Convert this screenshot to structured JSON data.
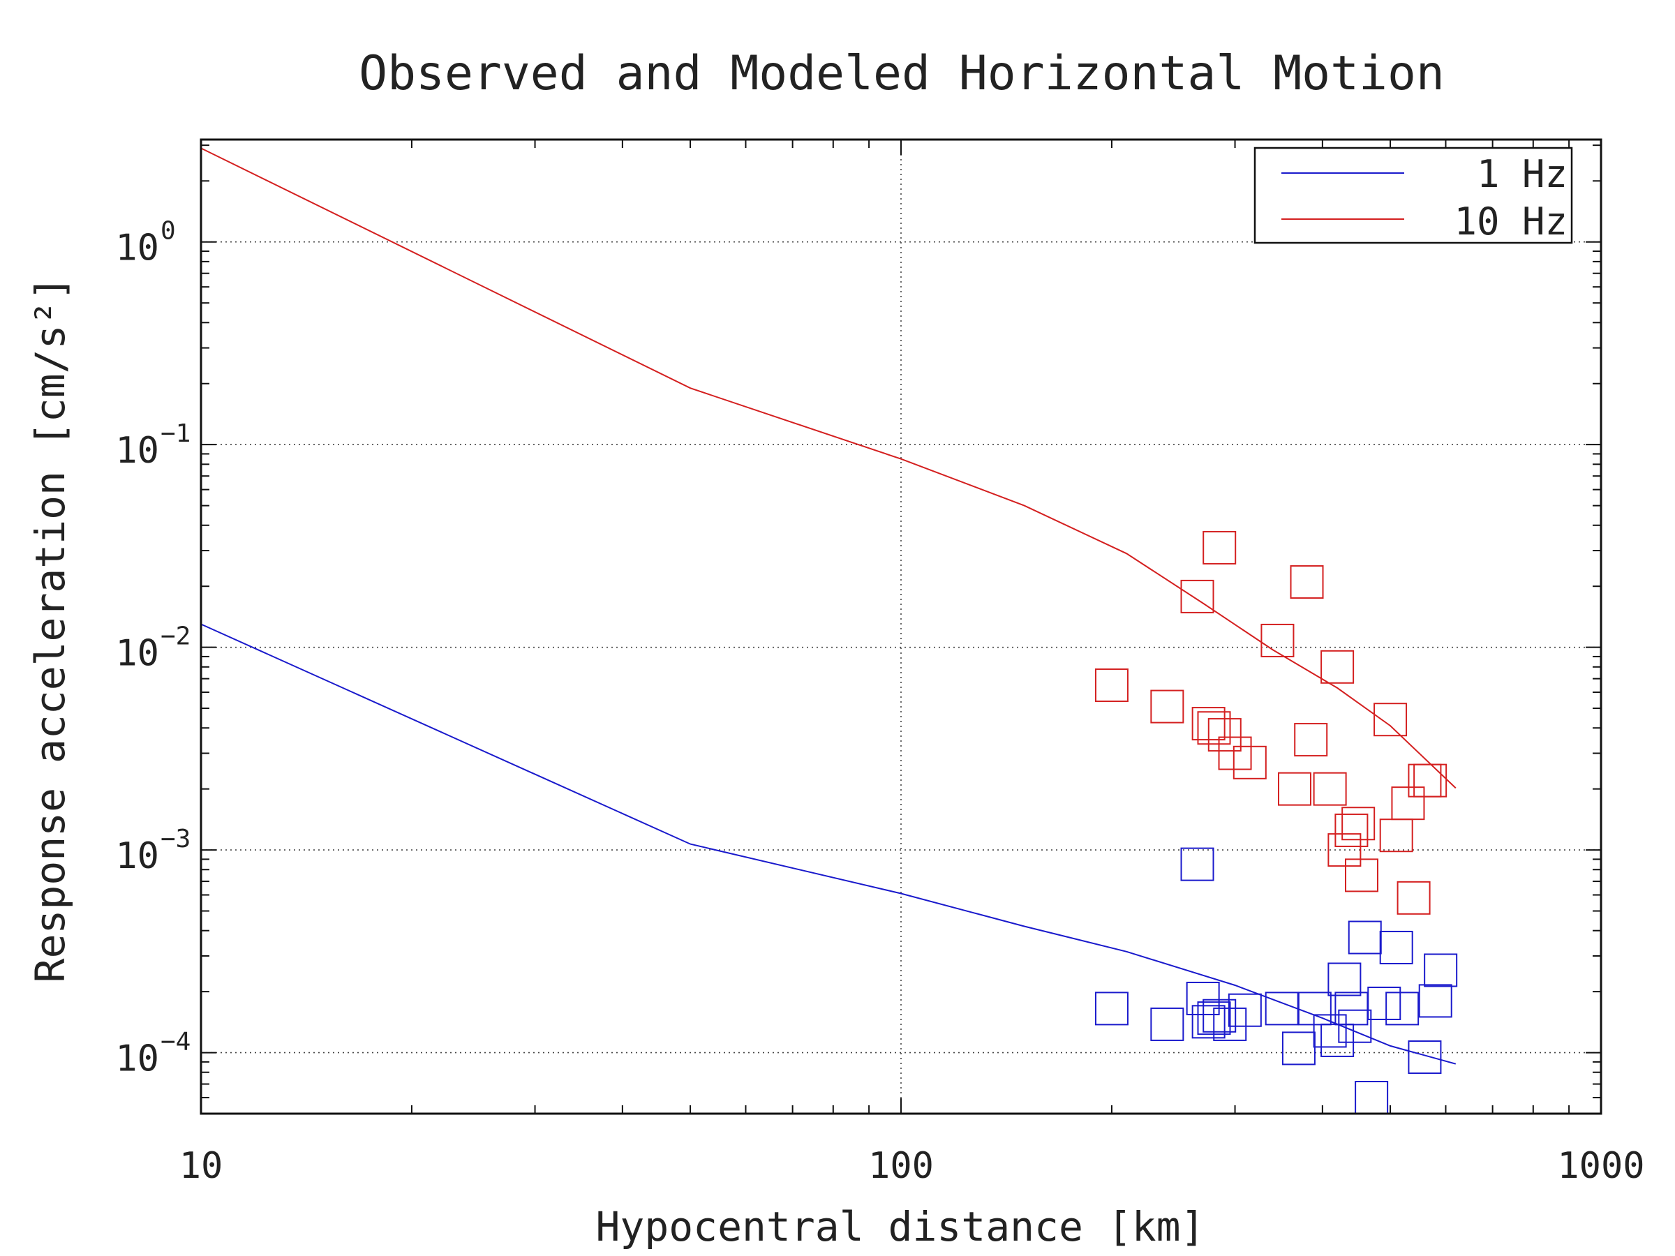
{
  "chart_data": {
    "type": "scatter",
    "title": "Observed and Modeled Horizontal Motion",
    "xlabel": "Hypocentral distance [km]",
    "ylabel": "Response acceleration [cm/s²]",
    "xscale": "log",
    "yscale": "log",
    "xlim": [
      10,
      1000
    ],
    "ylim": [
      5e-05,
      3.2
    ],
    "x_ticks": [
      {
        "value": 10,
        "label": "10"
      },
      {
        "value": 100,
        "label": "100"
      },
      {
        "value": 1000,
        "label": "1000"
      }
    ],
    "y_ticks": [
      {
        "value": 1,
        "base": "10",
        "exp": "0"
      },
      {
        "value": 0.1,
        "base": "10",
        "exp": "−1"
      },
      {
        "value": 0.01,
        "base": "10",
        "exp": "−2"
      },
      {
        "value": 0.001,
        "base": "10",
        "exp": "−3"
      },
      {
        "value": 0.0001,
        "base": "10",
        "exp": "−4"
      }
    ],
    "grid": true,
    "legend": {
      "position": "top-right",
      "entries": [
        "1 Hz",
        "10 Hz"
      ]
    },
    "series": [
      {
        "name": "1 Hz",
        "color": "#1a1acc",
        "model": {
          "x": [
            10,
            50,
            100,
            150,
            210,
            300,
            400,
            500,
            620
          ],
          "y": [
            0.013,
            0.00107,
            0.00061,
            0.00042,
            0.000315,
            0.000215,
            0.000148,
            0.000108,
            8.8e-05
          ]
        },
        "observed": {
          "x": [
            200,
            240,
            265,
            270,
            275,
            280,
            285,
            295,
            310,
            350,
            370,
            390,
            410,
            420,
            430,
            440,
            445,
            460,
            470,
            490,
            510,
            520,
            560,
            580,
            590
          ],
          "y": [
            0.000165,
            0.000138,
            0.00085,
            0.000185,
            0.000142,
            0.000148,
            0.000152,
            0.000138,
            0.000162,
            0.000165,
            0.000105,
            0.000165,
            0.000128,
            0.000115,
            0.00023,
            0.000165,
            0.000135,
            0.00037,
            6e-05,
            0.000175,
            0.00033,
            0.000165,
            9.5e-05,
            0.00018,
            0.000255
          ]
        }
      },
      {
        "name": "10 Hz",
        "color": "#d42020",
        "model": {
          "x": [
            10,
            50,
            100,
            150,
            210,
            270,
            340,
            420,
            500,
            620
          ],
          "y": [
            2.9,
            0.19,
            0.085,
            0.05,
            0.029,
            0.0165,
            0.0097,
            0.0063,
            0.0041,
            0.00202
          ]
        },
        "observed": {
          "x": [
            200,
            240,
            265,
            275,
            280,
            285,
            290,
            300,
            315,
            345,
            365,
            380,
            385,
            410,
            420,
            430,
            440,
            450,
            455,
            500,
            510,
            530,
            540,
            560,
            570
          ],
          "y": [
            0.0065,
            0.0051,
            0.0178,
            0.0042,
            0.004,
            0.031,
            0.0037,
            0.003,
            0.0027,
            0.0108,
            0.002,
            0.021,
            0.0035,
            0.002,
            0.008,
            0.001,
            0.00125,
            0.00135,
            0.00075,
            0.0044,
            0.00118,
            0.0017,
            0.00058,
            0.0022,
            0.0022
          ]
        }
      }
    ]
  }
}
